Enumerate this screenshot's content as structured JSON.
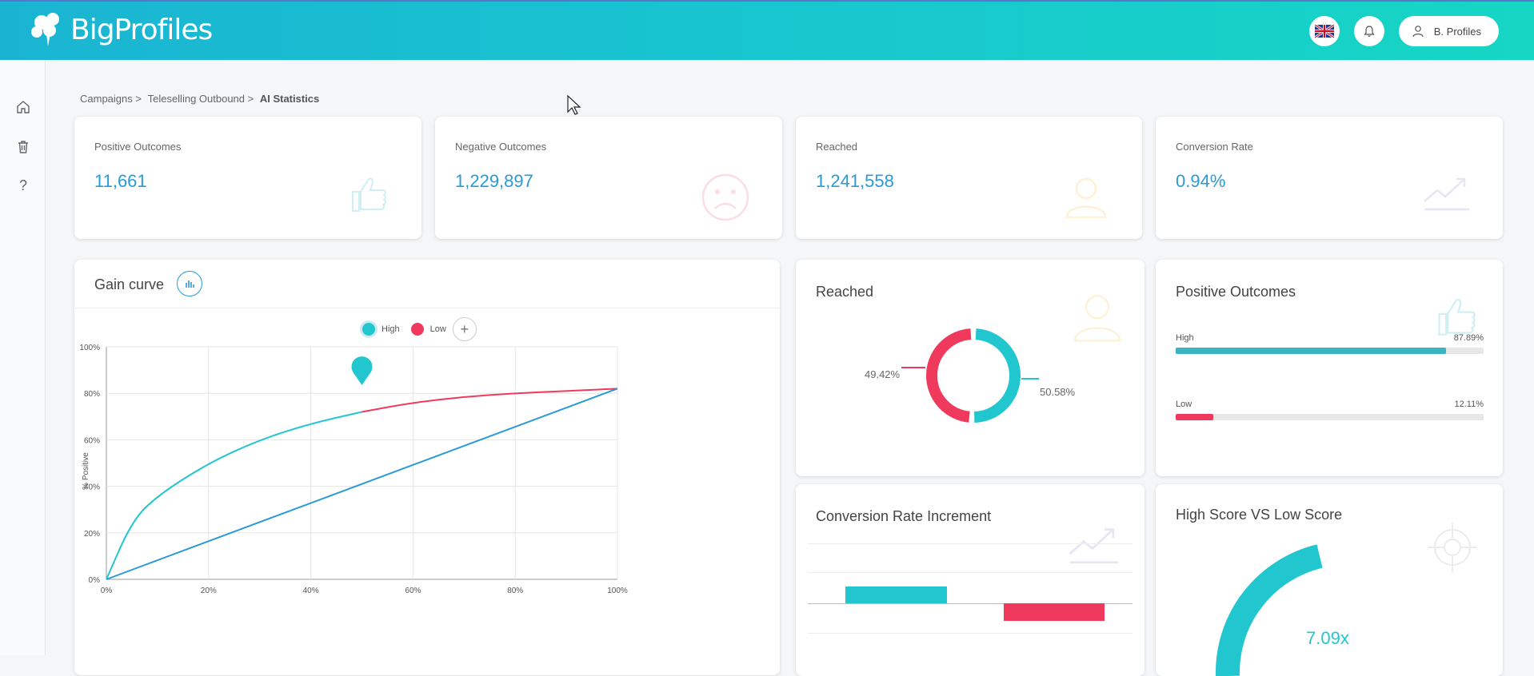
{
  "app": {
    "name": "BigProfiles"
  },
  "header": {
    "user_label": "B. Profiles",
    "language_icon": "uk-flag-icon",
    "notification_icon": "bell-icon",
    "user_icon": "user-icon"
  },
  "sidebar": {
    "items": [
      {
        "icon": "home-icon"
      },
      {
        "icon": "trash-icon"
      },
      {
        "icon": "help-icon",
        "label": "?"
      }
    ]
  },
  "breadcrumb": {
    "items": [
      "Campaigns >",
      "Teleselling Outbound >"
    ],
    "current": "AI Statistics"
  },
  "stats": [
    {
      "label": "Positive Outcomes",
      "value": "11,661",
      "icon": "thumbs-up-icon"
    },
    {
      "label": "Negative Outcomes",
      "value": "1,229,897",
      "icon": "sad-face-icon"
    },
    {
      "label": "Reached",
      "value": "1,241,558",
      "icon": "person-icon"
    },
    {
      "label": "Conversion Rate",
      "value": "0.94%",
      "icon": "trend-up-icon"
    }
  ],
  "gain_curve": {
    "title": "Gain curve",
    "legend": {
      "high": "High",
      "low": "Low",
      "add": "+"
    },
    "colors": {
      "high": "#22c6cf",
      "low": "#ef3a5d",
      "baseline": "#2a9ad6"
    },
    "y_axis_label": "% Positive",
    "y_ticks": [
      "0%",
      "20%",
      "40%",
      "60%",
      "80%",
      "100%"
    ],
    "x_ticks": [
      "0%",
      "20%",
      "40%",
      "60%",
      "80%",
      "100%"
    ]
  },
  "chart_data": {
    "type": "line",
    "ylabel": "% Positive",
    "xlim": [
      0,
      100
    ],
    "ylim": [
      0,
      100
    ],
    "grid": true,
    "legend_position": "top-center",
    "series": [
      {
        "name": "High",
        "x": [
          0,
          5,
          10,
          20,
          30,
          40,
          50
        ],
        "y": [
          0,
          25,
          36,
          50,
          60,
          67,
          72
        ]
      },
      {
        "name": "Low",
        "x": [
          50,
          60,
          70,
          80,
          90,
          100
        ],
        "y": [
          72,
          76,
          78.5,
          80,
          81,
          82
        ]
      },
      {
        "x": [
          0,
          100
        ],
        "y": [
          0,
          82
        ]
      }
    ]
  },
  "reached_card": {
    "title": "Reached",
    "high_pct_label": "50.58%",
    "low_pct_label": "49.42%",
    "high_pct": 50.58,
    "low_pct": 49.42
  },
  "positive_card": {
    "title": "Positive Outcomes",
    "high_label": "High",
    "high_pct_label": "87.89%",
    "high_pct": 87.89,
    "low_label": "Low",
    "low_pct_label": "12.11%",
    "low_pct": 12.11
  },
  "conversion_card": {
    "title": "Conversion Rate Increment"
  },
  "score_card": {
    "title": "High Score VS Low Score",
    "value": "7.09x"
  }
}
